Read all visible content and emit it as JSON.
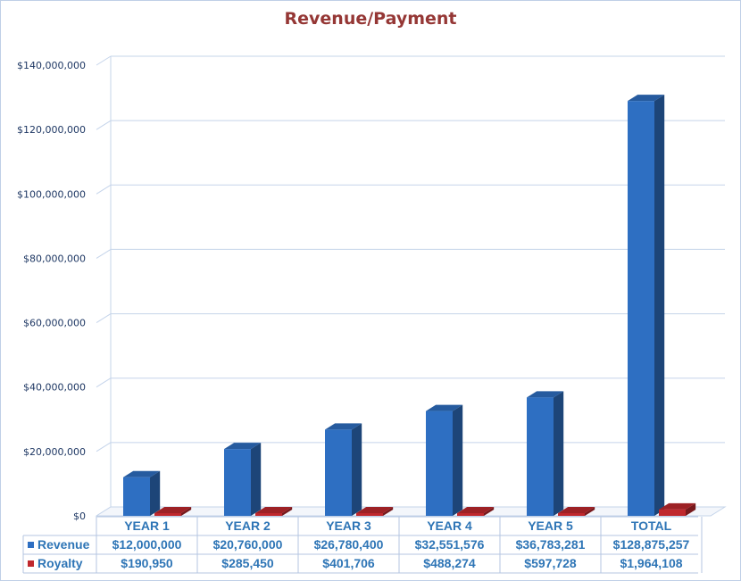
{
  "chart_data": {
    "type": "bar",
    "title": "Revenue/Payment",
    "categories": [
      "YEAR 1",
      "YEAR 2",
      "YEAR 3",
      "YEAR 4",
      "YEAR 5",
      "TOTAL"
    ],
    "series": [
      {
        "name": "Revenue",
        "color": "#2e6fc2",
        "values": [
          12000000,
          20760000,
          26780400,
          32551576,
          36783281,
          128875257
        ],
        "labels": [
          "$12,000,000",
          "$20,760,000",
          "$26,780,400",
          "$32,551,576",
          "$36,783,281",
          "$128,875,257"
        ]
      },
      {
        "name": "Royalty",
        "color": "#c0282d",
        "values": [
          190950,
          285450,
          401706,
          488274,
          597728,
          1964108
        ],
        "labels": [
          "$190,950",
          "$285,450",
          "$401,706",
          "$488,274",
          "$597,728",
          "$1,964,108"
        ]
      }
    ],
    "ylim": [
      0,
      140000000
    ],
    "yticks": [
      "$0",
      "$20,000,000",
      "$40,000,000",
      "$60,000,000",
      "$80,000,000",
      "$100,000,000",
      "$120,000,000",
      "$140,000,000"
    ],
    "grid": true,
    "data_table": true,
    "style": "3d-clustered-column"
  }
}
